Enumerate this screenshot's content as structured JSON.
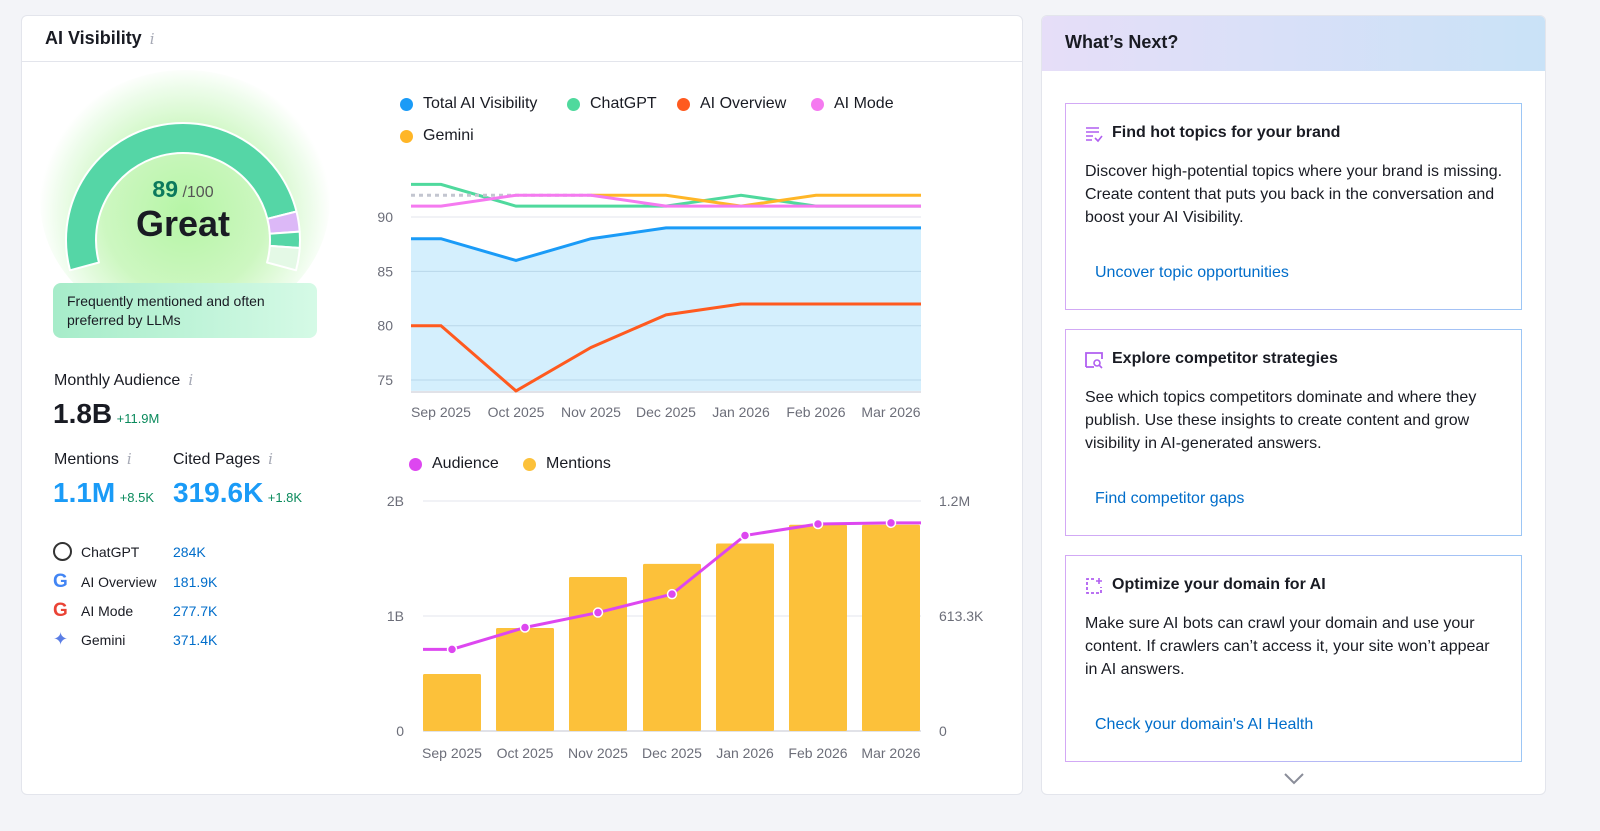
{
  "panel": {
    "title": "AI Visibility",
    "info_icon": "info-icon"
  },
  "score": {
    "value": "89",
    "max": "/100",
    "label": "Great",
    "fill_percent": 89,
    "description": "Frequently mentioned and often preferred by LLMs"
  },
  "metrics": {
    "audience": {
      "label": "Monthly Audience",
      "value": "1.8B",
      "delta": "+11.9M"
    },
    "mentions": {
      "label": "Mentions",
      "value": "1.1M",
      "delta": "+8.5K"
    },
    "cited": {
      "label": "Cited Pages",
      "value": "319.6K",
      "delta": "+1.8K"
    }
  },
  "sources": [
    {
      "name": "ChatGPT",
      "value": "284K",
      "icon": "chatgpt-icon"
    },
    {
      "name": "AI Overview",
      "value": "181.9K",
      "icon": "google-icon"
    },
    {
      "name": "AI Mode",
      "value": "277.7K",
      "icon": "google-icon"
    },
    {
      "name": "Gemini",
      "value": "371.4K",
      "icon": "gemini-icon"
    }
  ],
  "chart_data": [
    {
      "type": "line",
      "legend_position": "top",
      "grid": true,
      "x": [
        "Sep 2025",
        "Oct 2025",
        "Nov 2025",
        "Dec 2025",
        "Jan 2026",
        "Feb 2026",
        "Mar 2026"
      ],
      "yticks": [
        "90",
        "85",
        "80",
        "75"
      ],
      "ylim": [
        74,
        93.5
      ],
      "series": [
        {
          "name": "Total AI Visibility",
          "color": "#1a9bf7",
          "area": true,
          "values": [
            88,
            86,
            88,
            89,
            89,
            89,
            89
          ]
        },
        {
          "name": "ChatGPT",
          "color": "#4fd99d",
          "values": [
            93,
            91,
            91,
            91,
            92,
            91,
            91
          ]
        },
        {
          "name": "AI Overview",
          "color": "#ff5a1f",
          "values": [
            80,
            74,
            78,
            81,
            82,
            82,
            82
          ]
        },
        {
          "name": "AI Mode",
          "color": "#f57af0",
          "values": [
            91,
            92,
            92,
            91,
            91,
            91,
            91
          ]
        },
        {
          "name": "Gemini",
          "color": "#ffb627",
          "values": [
            null,
            null,
            92,
            92,
            91,
            92,
            92
          ]
        }
      ]
    },
    {
      "type": "bar+line",
      "legend_position": "top",
      "grid": true,
      "x": [
        "Sep 2025",
        "Oct 2025",
        "Nov 2025",
        "Dec 2025",
        "Jan 2026",
        "Feb 2026",
        "Mar 2026"
      ],
      "left_ticks": [
        "2B",
        "1B",
        "0"
      ],
      "right_ticks": [
        "1.2M",
        "613.3K",
        "0"
      ],
      "left_ylim": [
        0,
        2000000000
      ],
      "right_ylim": [
        0,
        1226600
      ],
      "series": [
        {
          "name": "Audience",
          "color": "#dd47f0",
          "axis": "left",
          "kind": "line",
          "values": [
            710000000,
            900000000,
            1030000000,
            1190000000,
            1700000000,
            1800000000,
            1810000000
          ]
        },
        {
          "name": "Mentions",
          "color": "#fcc13a",
          "axis": "right",
          "kind": "bar",
          "values": [
            304000,
            549000,
            821000,
            891000,
            1000000,
            1100000,
            1100000
          ]
        }
      ]
    }
  ],
  "next": {
    "title": "What’s Next?",
    "cards": [
      {
        "title": "Find hot topics for your brand",
        "text": "Discover high-potential topics where your brand is missing. Create content that puts you back in the conversation and boost your AI Visibility.",
        "link": "Uncover topic opportunities",
        "icon": "topics-list-icon"
      },
      {
        "title": "Explore competitor strategies",
        "text": "See which topics competitors dominate and where they publish. Use these insights to create content and grow visibility in AI-generated answers.",
        "link": "Find competitor gaps",
        "icon": "competitor-search-icon"
      },
      {
        "title": "Optimize your domain for AI",
        "text": "Make sure AI bots can crawl your domain and use your content. If crawlers can’t access it, your site won’t appear in AI answers.",
        "link": "Check your domain's AI Health",
        "icon": "domain-sparkle-icon"
      }
    ]
  }
}
